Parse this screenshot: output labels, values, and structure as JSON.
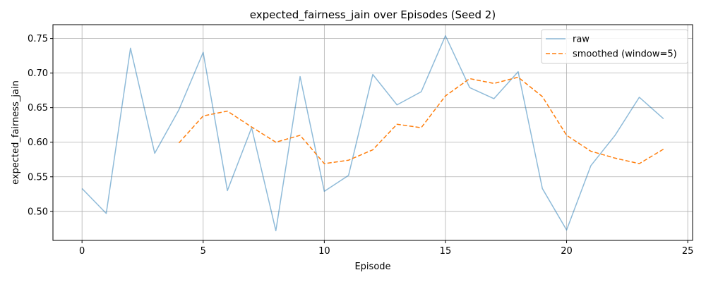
{
  "chart_data": {
    "type": "line",
    "title": "expected_fairness_jain over Episodes (Seed 2)",
    "xlabel": "Episode",
    "ylabel": "expected_fairness_jain",
    "xlim": [
      -1.2,
      25.2
    ],
    "ylim": [
      0.458,
      0.77
    ],
    "xticks": [
      0,
      5,
      10,
      15,
      20,
      25
    ],
    "yticks": [
      0.5,
      0.55,
      0.6,
      0.65,
      0.7,
      0.75
    ],
    "ytick_labels": [
      "0.50",
      "0.55",
      "0.60",
      "0.65",
      "0.70",
      "0.75"
    ],
    "grid": true,
    "legend_position": "top-right",
    "series": [
      {
        "name": "raw",
        "color": "#1f77b4",
        "style": "solid",
        "x": [
          0,
          1,
          2,
          3,
          4,
          5,
          6,
          7,
          8,
          9,
          10,
          11,
          12,
          13,
          14,
          15,
          16,
          17,
          18,
          19,
          20,
          21,
          22,
          23,
          24
        ],
        "values": [
          0.533,
          0.497,
          0.736,
          0.584,
          0.647,
          0.73,
          0.53,
          0.621,
          0.472,
          0.695,
          0.529,
          0.552,
          0.698,
          0.654,
          0.673,
          0.754,
          0.679,
          0.663,
          0.702,
          0.533,
          0.473,
          0.566,
          0.61,
          0.665,
          0.634
        ]
      },
      {
        "name": "smoothed (window=5)",
        "color": "#ff7f0e",
        "style": "dashed",
        "x": [
          4,
          5,
          6,
          7,
          8,
          9,
          10,
          11,
          12,
          13,
          14,
          15,
          16,
          17,
          18,
          19,
          20,
          21,
          22,
          23,
          24
        ],
        "values": [
          0.599,
          0.638,
          0.645,
          0.622,
          0.6,
          0.61,
          0.569,
          0.574,
          0.589,
          0.626,
          0.621,
          0.667,
          0.692,
          0.685,
          0.694,
          0.666,
          0.61,
          0.587,
          0.577,
          0.569,
          0.59
        ]
      }
    ]
  }
}
